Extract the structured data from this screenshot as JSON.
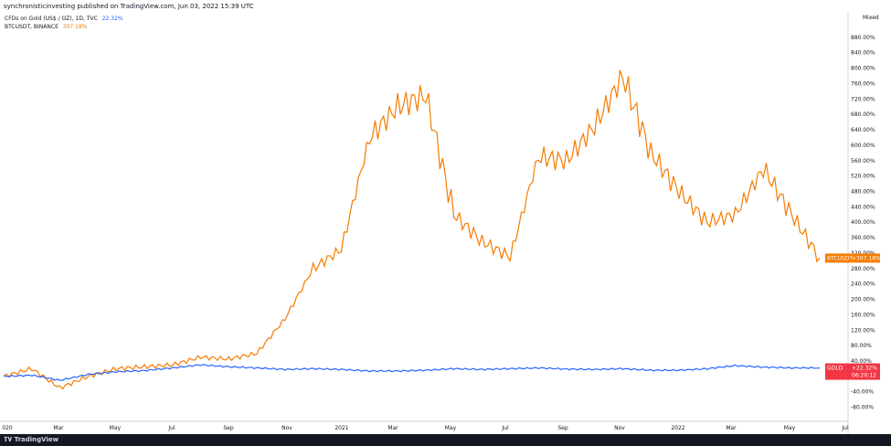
{
  "header": {
    "publish_line": "synchronisticinvesting published on TradingView.com, Jun 03, 2022 15:39 UTC"
  },
  "legend": {
    "gold_name": "CFDs on Gold (US$ / OZ), 1D, TVC",
    "gold_value": "22.32%",
    "btc_name": "BTCUSDT, BINANCE",
    "btc_value": "307.18%"
  },
  "scale_mode": "Mixed",
  "tags": {
    "btc_tag": "BTCUSDT",
    "btc_value": "+307.18%",
    "gold_tag": "GOLD",
    "gold_value": "+22.32%",
    "gold_time": "06:20:12"
  },
  "footer": {
    "brand": "TradingView"
  },
  "colors": {
    "btc": "#f57c00",
    "gold": "#2962ff",
    "tag_red": "#f23645"
  },
  "chart_data": {
    "type": "line",
    "title": "",
    "xlabel": "",
    "ylabel": "",
    "x_ticks": [
      "020",
      "Mar",
      "May",
      "Jul",
      "Sep",
      "Nov",
      "2021",
      "Mar",
      "May",
      "Jul",
      "Sep",
      "Nov",
      "2022",
      "Mar",
      "May",
      "Jul"
    ],
    "y_ticks": [
      "-80.00%",
      "-40.00%",
      "0.00%",
      "40.00%",
      "80.00%",
      "120.00%",
      "160.00%",
      "200.00%",
      "240.00%",
      "280.00%",
      "320.00%",
      "360.00%",
      "400.00%",
      "440.00%",
      "480.00%",
      "520.00%",
      "560.00%",
      "600.00%",
      "640.00%",
      "680.00%",
      "720.00%",
      "760.00%",
      "800.00%",
      "840.00%",
      "880.00%"
    ],
    "ylim": [
      -100,
      920
    ],
    "x": [
      "2020-01",
      "2020-02",
      "2020-03",
      "2020-04",
      "2020-05",
      "2020-06",
      "2020-07",
      "2020-08",
      "2020-09",
      "2020-10",
      "2020-11",
      "2020-12",
      "2021-01",
      "2021-02",
      "2021-03",
      "2021-04",
      "2021-05",
      "2021-06",
      "2021-07",
      "2021-08",
      "2021-09",
      "2021-10",
      "2021-11",
      "2021-12",
      "2022-01",
      "2022-02",
      "2022-03",
      "2022-04",
      "2022-05",
      "2022-06"
    ],
    "series": [
      {
        "name": "BTCUSDT",
        "color": "#f57c00",
        "values": [
          0,
          20,
          -30,
          0,
          20,
          25,
          30,
          50,
          45,
          60,
          150,
          280,
          330,
          620,
          700,
          730,
          420,
          350,
          310,
          570,
          560,
          650,
          780,
          580,
          480,
          400,
          420,
          540,
          420,
          307
        ]
      },
      {
        "name": "GOLD",
        "color": "#2962ff",
        "values": [
          0,
          3,
          -10,
          5,
          12,
          15,
          22,
          30,
          25,
          22,
          18,
          20,
          18,
          14,
          14,
          16,
          20,
          18,
          20,
          22,
          19,
          18,
          20,
          16,
          16,
          20,
          28,
          24,
          22,
          22
        ]
      }
    ]
  }
}
